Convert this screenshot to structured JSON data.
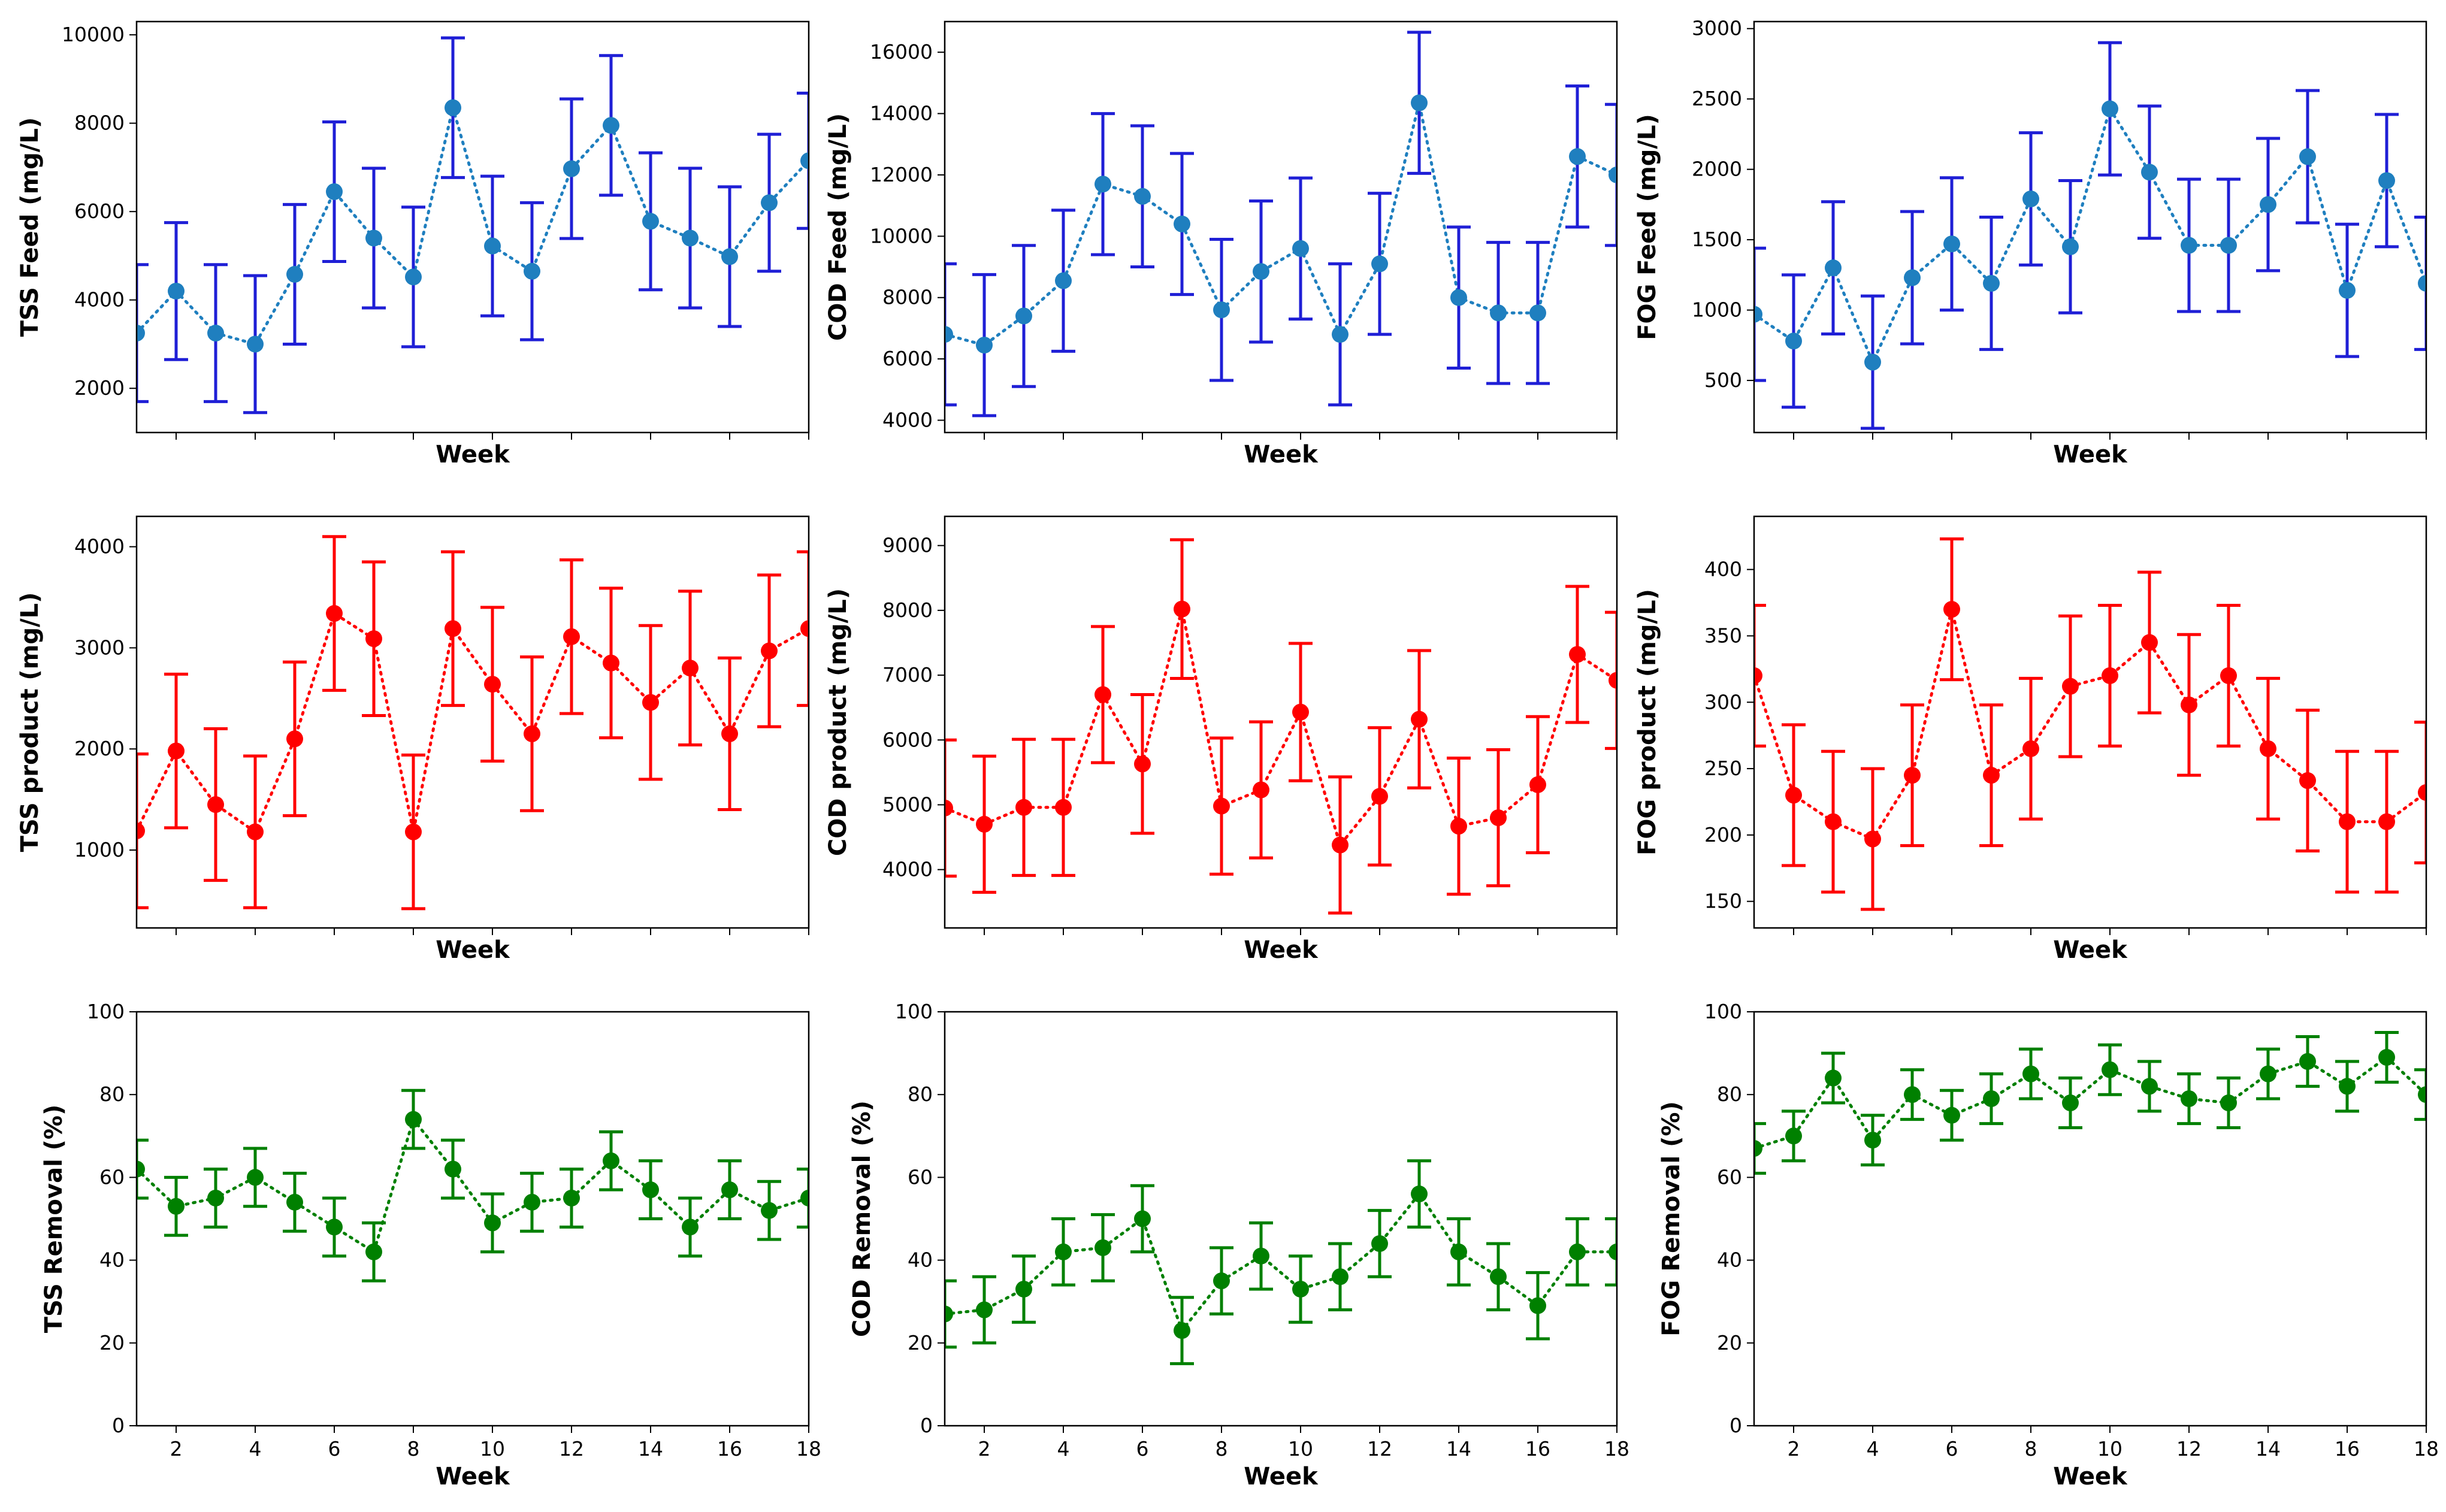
{
  "figure": {
    "xlabel": "Week",
    "weeks": [
      1,
      2,
      3,
      4,
      5,
      6,
      7,
      8,
      9,
      10,
      11,
      12,
      13,
      14,
      15,
      16,
      17,
      18
    ],
    "xlim": [
      1,
      18
    ],
    "xticks": [
      2,
      4,
      6,
      8,
      10,
      12,
      14,
      16,
      18
    ],
    "row_colors": {
      "feed": "#1f1fd6",
      "feed_marker": "#1f7fbf",
      "product": "#ff0000",
      "removal": "#008000"
    }
  },
  "chart_data": [
    {
      "type": "line",
      "ylabel": "TSS Feed (mg/L)",
      "xlabel": "Week",
      "ylim": [
        1000,
        10300
      ],
      "yticks": [
        2000,
        4000,
        6000,
        8000,
        10000
      ],
      "show_xtick_labels": false,
      "row": "feed",
      "values": [
        3250,
        4200,
        3250,
        3000,
        4580,
        6450,
        5400,
        4520,
        8350,
        5220,
        4650,
        6970,
        7950,
        5780,
        5400,
        4980,
        6200,
        7150
      ],
      "errors": [
        1550,
        1550,
        1550,
        1550,
        1580,
        1580,
        1580,
        1580,
        1580,
        1580,
        1550,
        1580,
        1580,
        1550,
        1580,
        1580,
        1550,
        1530
      ]
    },
    {
      "type": "line",
      "ylabel": "COD Feed (mg/L)",
      "xlabel": "Week",
      "ylim": [
        3600,
        17000
      ],
      "yticks": [
        4000,
        6000,
        8000,
        10000,
        12000,
        14000,
        16000
      ],
      "show_xtick_labels": false,
      "row": "feed",
      "values": [
        6800,
        6450,
        7400,
        8550,
        11700,
        11300,
        10400,
        7600,
        8850,
        9600,
        6800,
        9100,
        14350,
        8000,
        7500,
        7500,
        12600,
        12000
      ],
      "errors": [
        2300,
        2300,
        2300,
        2300,
        2300,
        2300,
        2300,
        2300,
        2300,
        2300,
        2300,
        2300,
        2300,
        2300,
        2300,
        2300,
        2300,
        2300
      ]
    },
    {
      "type": "line",
      "ylabel": "FOG Feed (mg/L)",
      "xlabel": "Week",
      "ylim": [
        130,
        3050
      ],
      "yticks": [
        500,
        1000,
        1500,
        2000,
        2500,
        3000
      ],
      "show_xtick_labels": false,
      "row": "feed",
      "values": [
        970,
        780,
        1300,
        630,
        1230,
        1470,
        1190,
        1790,
        1450,
        2430,
        1980,
        1460,
        1460,
        1750,
        2090,
        1140,
        1920,
        1190
      ],
      "errors": [
        470,
        470,
        470,
        470,
        470,
        470,
        470,
        470,
        470,
        470,
        470,
        470,
        470,
        470,
        470,
        470,
        470,
        470
      ]
    },
    {
      "type": "line",
      "ylabel": "TSS product (mg/L)",
      "xlabel": "Week",
      "ylim": [
        230,
        4300
      ],
      "yticks": [
        1000,
        2000,
        3000,
        4000
      ],
      "show_xtick_labels": false,
      "row": "product",
      "values": [
        1190,
        1980,
        1450,
        1180,
        2100,
        3340,
        3090,
        1180,
        3190,
        2640,
        2150,
        3110,
        2850,
        2460,
        2800,
        2150,
        2970,
        3190
      ],
      "errors": [
        760,
        760,
        750,
        750,
        760,
        760,
        760,
        760,
        760,
        760,
        760,
        760,
        740,
        760,
        760,
        750,
        750,
        760
      ]
    },
    {
      "type": "line",
      "ylabel": "COD product (mg/L)",
      "xlabel": "Week",
      "ylim": [
        3100,
        9450
      ],
      "yticks": [
        4000,
        5000,
        6000,
        7000,
        8000,
        9000
      ],
      "show_xtick_labels": false,
      "row": "product",
      "values": [
        4950,
        4700,
        4960,
        4960,
        6700,
        5630,
        8020,
        4980,
        5230,
        6430,
        4380,
        5130,
        6320,
        4670,
        4800,
        5310,
        7320,
        6920
      ],
      "errors": [
        1050,
        1050,
        1050,
        1050,
        1050,
        1070,
        1070,
        1050,
        1050,
        1060,
        1050,
        1060,
        1060,
        1050,
        1050,
        1050,
        1050,
        1050
      ]
    },
    {
      "type": "line",
      "ylabel": "FOG product (mg/L)",
      "xlabel": "Week",
      "ylim": [
        130,
        440
      ],
      "yticks": [
        150,
        200,
        250,
        300,
        350,
        400
      ],
      "show_xtick_labels": false,
      "row": "product",
      "values": [
        320,
        230,
        210,
        197,
        245,
        370,
        245,
        265,
        312,
        320,
        345,
        298,
        320,
        265,
        241,
        210,
        210,
        232
      ],
      "errors": [
        53,
        53,
        53,
        53,
        53,
        53,
        53,
        53,
        53,
        53,
        53,
        53,
        53,
        53,
        53,
        53,
        53,
        53
      ]
    },
    {
      "type": "line",
      "ylabel": "TSS Removal (%)",
      "xlabel": "Week",
      "ylim": [
        0,
        100
      ],
      "yticks": [
        0,
        20,
        40,
        60,
        80,
        100
      ],
      "show_xtick_labels": true,
      "row": "removal",
      "values": [
        62,
        53,
        55,
        60,
        54,
        48,
        42,
        74,
        62,
        49,
        54,
        55,
        64,
        57,
        48,
        57,
        52,
        55
      ],
      "errors": [
        7,
        7,
        7,
        7,
        7,
        7,
        7,
        7,
        7,
        7,
        7,
        7,
        7,
        7,
        7,
        7,
        7,
        7
      ]
    },
    {
      "type": "line",
      "ylabel": "COD Removal (%)",
      "xlabel": "Week",
      "ylim": [
        0,
        100
      ],
      "yticks": [
        0,
        20,
        40,
        60,
        80,
        100
      ],
      "show_xtick_labels": true,
      "row": "removal",
      "values": [
        27,
        28,
        33,
        42,
        43,
        50,
        23,
        35,
        41,
        33,
        36,
        44,
        56,
        42,
        36,
        29,
        42,
        42
      ],
      "errors": [
        8,
        8,
        8,
        8,
        8,
        8,
        8,
        8,
        8,
        8,
        8,
        8,
        8,
        8,
        8,
        8,
        8,
        8
      ]
    },
    {
      "type": "line",
      "ylabel": "FOG Removal (%)",
      "xlabel": "Week",
      "ylim": [
        0,
        100
      ],
      "yticks": [
        0,
        20,
        40,
        60,
        80,
        100
      ],
      "show_xtick_labels": true,
      "row": "removal",
      "values": [
        67,
        70,
        84,
        69,
        80,
        75,
        79,
        85,
        78,
        86,
        82,
        79,
        78,
        85,
        88,
        82,
        89,
        80
      ],
      "errors": [
        6,
        6,
        6,
        6,
        6,
        6,
        6,
        6,
        6,
        6,
        6,
        6,
        6,
        6,
        6,
        6,
        6,
        6
      ]
    }
  ]
}
